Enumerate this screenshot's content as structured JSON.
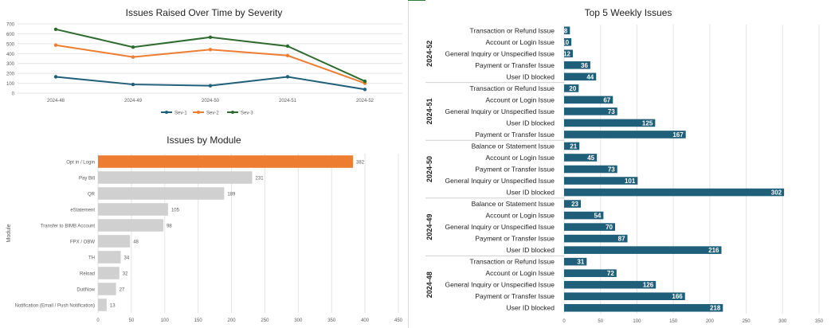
{
  "chart_data": [
    {
      "type": "line",
      "title": "Issues Raised Over Time by Severity",
      "x": [
        "2024-48",
        "2024-49",
        "2024-50",
        "2024-51",
        "2024-52"
      ],
      "ylim": [
        0,
        700
      ],
      "yticks": [
        0,
        100,
        200,
        300,
        400,
        500,
        600,
        700
      ],
      "grid": true,
      "legend": "bottom",
      "series": [
        {
          "name": "Sev-1",
          "color": "#1f5f7a",
          "values": [
            165,
            88,
            75,
            165,
            38
          ]
        },
        {
          "name": "Sev-2",
          "color": "#ed7d31",
          "values": [
            485,
            365,
            440,
            380,
            100
          ]
        },
        {
          "name": "Sev-3",
          "color": "#2e6b2e",
          "values": [
            645,
            465,
            565,
            475,
            120
          ]
        }
      ]
    },
    {
      "type": "bar",
      "orientation": "horizontal",
      "title": "Issues by Module",
      "ylabel": "Module",
      "categories": [
        "Opt in / Login",
        "Pay Bill",
        "QR",
        "eStatement",
        "Transfer to BIMB Account",
        "FPX / OBW",
        "TH",
        "Reload",
        "DuitNow",
        "Notification (Email / Push Notification)"
      ],
      "values": [
        382,
        231,
        189,
        105,
        98,
        48,
        34,
        32,
        27,
        13
      ],
      "highlight_color": "#ed7d31",
      "bar_color": "#d0d0d0",
      "xlim": [
        0,
        450
      ],
      "xticks": [
        0,
        50,
        100,
        150,
        200,
        250,
        300,
        350,
        400,
        450
      ],
      "grid": true
    },
    {
      "type": "bar",
      "orientation": "horizontal",
      "title": "Top 5 Weekly Issues",
      "bar_color": "#1f5f7a",
      "xlim": [
        0,
        350
      ],
      "xticks": [
        0,
        50,
        100,
        150,
        200,
        250,
        300,
        350
      ],
      "grid": true,
      "groups": [
        {
          "week": "2024-52",
          "items": [
            {
              "label": "Transaction or Refund Issue",
              "value": 8
            },
            {
              "label": "Account or Login Issue",
              "value": 10
            },
            {
              "label": "General Inquiry or Unspecified Issue",
              "value": 12
            },
            {
              "label": "Payment or Transfer Issue",
              "value": 36
            },
            {
              "label": "User ID blocked",
              "value": 44
            }
          ]
        },
        {
          "week": "2024-51",
          "items": [
            {
              "label": "Transaction or Refund Issue",
              "value": 20
            },
            {
              "label": "Account or Login Issue",
              "value": 67
            },
            {
              "label": "General Inquiry or Unspecified Issue",
              "value": 73
            },
            {
              "label": "User ID blocked",
              "value": 125
            },
            {
              "label": "Payment or Transfer Issue",
              "value": 167
            }
          ]
        },
        {
          "week": "2024-50",
          "items": [
            {
              "label": "Balance or Statement Issue",
              "value": 21
            },
            {
              "label": "Account or Login Issue",
              "value": 45
            },
            {
              "label": "Payment or Transfer Issue",
              "value": 73
            },
            {
              "label": "General Inquiry or Unspecified Issue",
              "value": 101
            },
            {
              "label": "User ID blocked",
              "value": 302
            }
          ]
        },
        {
          "week": "2024-49",
          "items": [
            {
              "label": "Balance or Statement Issue",
              "value": 23
            },
            {
              "label": "Account or Login Issue",
              "value": 54
            },
            {
              "label": "General Inquiry or Unspecified Issue",
              "value": 70
            },
            {
              "label": "Payment or Transfer Issue",
              "value": 87
            },
            {
              "label": "User ID blocked",
              "value": 216
            }
          ]
        },
        {
          "week": "2024-48",
          "items": [
            {
              "label": "Transaction or Refund Issue",
              "value": 31
            },
            {
              "label": "Account or Login Issue",
              "value": 72
            },
            {
              "label": "General Inquiry or Unspecified Issue",
              "value": 126
            },
            {
              "label": "Payment or Transfer Issue",
              "value": 166
            },
            {
              "label": "User ID blocked",
              "value": 218
            }
          ]
        }
      ]
    }
  ]
}
